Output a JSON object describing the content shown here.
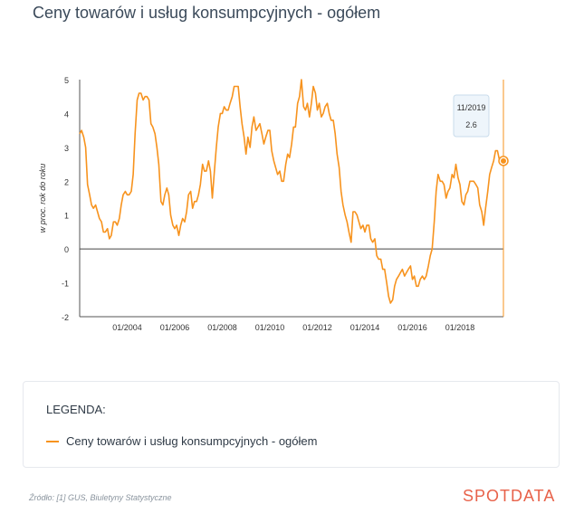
{
  "title": "Ceny towarów i usług konsumpcyjnych - ogółem",
  "legend": {
    "title": "LEGENDA:",
    "item": "Ceny towarów i usług konsumpcyjnych - ogółem"
  },
  "source": "Źródło: [1] GUS, Biuletyny Statystyczne",
  "brand": "SPOTDATA",
  "colors": {
    "series": "#f7931e",
    "brand": "#e8624a",
    "title": "#3b4a5a"
  },
  "chart_data": {
    "type": "line",
    "ylabel": "w proc. rok do roku",
    "ylim": [
      -2,
      5
    ],
    "yticks": [
      -2,
      -1,
      0,
      1,
      2,
      3,
      4,
      5
    ],
    "xlim": [
      2002.0,
      2019.83
    ],
    "xticks": [
      {
        "x": 2004.0,
        "label": "01/2004"
      },
      {
        "x": 2006.0,
        "label": "01/2006"
      },
      {
        "x": 2008.0,
        "label": "01/2008"
      },
      {
        "x": 2010.0,
        "label": "01/2010"
      },
      {
        "x": 2012.0,
        "label": "01/2012"
      },
      {
        "x": 2014.0,
        "label": "01/2014"
      },
      {
        "x": 2016.0,
        "label": "01/2016"
      },
      {
        "x": 2018.0,
        "label": "01/2018"
      }
    ],
    "tooltip": {
      "date": "11/2019",
      "value": "2.6"
    },
    "series": [
      {
        "name": "Ceny towarów i usług konsumpcyjnych - ogółem",
        "points": [
          [
            2002.0,
            3.4
          ],
          [
            2002.08,
            3.5
          ],
          [
            2002.17,
            3.3
          ],
          [
            2002.25,
            3.0
          ],
          [
            2002.33,
            1.9
          ],
          [
            2002.42,
            1.6
          ],
          [
            2002.5,
            1.3
          ],
          [
            2002.58,
            1.2
          ],
          [
            2002.67,
            1.3
          ],
          [
            2002.75,
            1.1
          ],
          [
            2002.83,
            0.9
          ],
          [
            2002.92,
            0.8
          ],
          [
            2003.0,
            0.5
          ],
          [
            2003.08,
            0.5
          ],
          [
            2003.17,
            0.6
          ],
          [
            2003.25,
            0.3
          ],
          [
            2003.33,
            0.4
          ],
          [
            2003.42,
            0.8
          ],
          [
            2003.5,
            0.8
          ],
          [
            2003.58,
            0.7
          ],
          [
            2003.67,
            0.9
          ],
          [
            2003.75,
            1.3
          ],
          [
            2003.83,
            1.6
          ],
          [
            2003.92,
            1.7
          ],
          [
            2004.0,
            1.6
          ],
          [
            2004.08,
            1.6
          ],
          [
            2004.17,
            1.7
          ],
          [
            2004.25,
            2.2
          ],
          [
            2004.33,
            3.4
          ],
          [
            2004.42,
            4.4
          ],
          [
            2004.5,
            4.6
          ],
          [
            2004.58,
            4.6
          ],
          [
            2004.67,
            4.4
          ],
          [
            2004.75,
            4.5
          ],
          [
            2004.83,
            4.5
          ],
          [
            2004.92,
            4.4
          ],
          [
            2005.0,
            3.7
          ],
          [
            2005.08,
            3.6
          ],
          [
            2005.17,
            3.4
          ],
          [
            2005.25,
            3.0
          ],
          [
            2005.33,
            2.5
          ],
          [
            2005.42,
            1.4
          ],
          [
            2005.5,
            1.3
          ],
          [
            2005.58,
            1.6
          ],
          [
            2005.67,
            1.8
          ],
          [
            2005.75,
            1.6
          ],
          [
            2005.83,
            1.0
          ],
          [
            2005.92,
            0.7
          ],
          [
            2006.0,
            0.6
          ],
          [
            2006.08,
            0.7
          ],
          [
            2006.17,
            0.4
          ],
          [
            2006.25,
            0.7
          ],
          [
            2006.33,
            0.9
          ],
          [
            2006.42,
            0.8
          ],
          [
            2006.5,
            1.1
          ],
          [
            2006.58,
            1.6
          ],
          [
            2006.67,
            1.7
          ],
          [
            2006.75,
            1.2
          ],
          [
            2006.83,
            1.4
          ],
          [
            2006.92,
            1.4
          ],
          [
            2007.0,
            1.6
          ],
          [
            2007.08,
            1.9
          ],
          [
            2007.17,
            2.5
          ],
          [
            2007.25,
            2.3
          ],
          [
            2007.33,
            2.3
          ],
          [
            2007.42,
            2.6
          ],
          [
            2007.5,
            2.3
          ],
          [
            2007.58,
            1.5
          ],
          [
            2007.67,
            2.3
          ],
          [
            2007.75,
            3.0
          ],
          [
            2007.83,
            3.6
          ],
          [
            2007.92,
            4.0
          ],
          [
            2008.0,
            4.0
          ],
          [
            2008.08,
            4.2
          ],
          [
            2008.17,
            4.1
          ],
          [
            2008.25,
            4.1
          ],
          [
            2008.33,
            4.3
          ],
          [
            2008.42,
            4.5
          ],
          [
            2008.5,
            4.8
          ],
          [
            2008.58,
            4.8
          ],
          [
            2008.67,
            4.8
          ],
          [
            2008.75,
            4.2
          ],
          [
            2008.83,
            3.7
          ],
          [
            2008.92,
            3.3
          ],
          [
            2009.0,
            2.8
          ],
          [
            2009.08,
            3.3
          ],
          [
            2009.17,
            3.0
          ],
          [
            2009.25,
            3.6
          ],
          [
            2009.33,
            3.9
          ],
          [
            2009.42,
            3.5
          ],
          [
            2009.5,
            3.6
          ],
          [
            2009.58,
            3.7
          ],
          [
            2009.67,
            3.4
          ],
          [
            2009.75,
            3.1
          ],
          [
            2009.83,
            3.3
          ],
          [
            2009.92,
            3.5
          ],
          [
            2010.0,
            3.5
          ],
          [
            2010.08,
            2.9
          ],
          [
            2010.17,
            2.6
          ],
          [
            2010.25,
            2.4
          ],
          [
            2010.33,
            2.2
          ],
          [
            2010.42,
            2.3
          ],
          [
            2010.5,
            2.0
          ],
          [
            2010.58,
            2.0
          ],
          [
            2010.67,
            2.5
          ],
          [
            2010.75,
            2.8
          ],
          [
            2010.83,
            2.7
          ],
          [
            2010.92,
            3.1
          ],
          [
            2011.0,
            3.6
          ],
          [
            2011.08,
            3.6
          ],
          [
            2011.17,
            4.3
          ],
          [
            2011.25,
            4.5
          ],
          [
            2011.33,
            5.0
          ],
          [
            2011.42,
            4.2
          ],
          [
            2011.5,
            4.1
          ],
          [
            2011.58,
            4.3
          ],
          [
            2011.67,
            3.9
          ],
          [
            2011.75,
            4.3
          ],
          [
            2011.83,
            4.8
          ],
          [
            2011.92,
            4.6
          ],
          [
            2012.0,
            4.1
          ],
          [
            2012.08,
            4.3
          ],
          [
            2012.17,
            3.9
          ],
          [
            2012.25,
            4.0
          ],
          [
            2012.33,
            4.2
          ],
          [
            2012.42,
            4.3
          ],
          [
            2012.5,
            4.0
          ],
          [
            2012.58,
            3.8
          ],
          [
            2012.67,
            3.8
          ],
          [
            2012.75,
            3.4
          ],
          [
            2012.83,
            2.8
          ],
          [
            2012.92,
            2.4
          ],
          [
            2013.0,
            1.7
          ],
          [
            2013.08,
            1.3
          ],
          [
            2013.17,
            1.0
          ],
          [
            2013.25,
            0.8
          ],
          [
            2013.33,
            0.5
          ],
          [
            2013.42,
            0.2
          ],
          [
            2013.5,
            1.1
          ],
          [
            2013.58,
            1.1
          ],
          [
            2013.67,
            1.0
          ],
          [
            2013.75,
            0.8
          ],
          [
            2013.83,
            0.6
          ],
          [
            2013.92,
            0.7
          ],
          [
            2014.0,
            0.5
          ],
          [
            2014.08,
            0.7
          ],
          [
            2014.17,
            0.7
          ],
          [
            2014.25,
            0.3
          ],
          [
            2014.33,
            0.2
          ],
          [
            2014.42,
            0.3
          ],
          [
            2014.5,
            -0.2
          ],
          [
            2014.58,
            -0.3
          ],
          [
            2014.67,
            -0.3
          ],
          [
            2014.75,
            -0.6
          ],
          [
            2014.83,
            -0.6
          ],
          [
            2014.92,
            -1.0
          ],
          [
            2015.0,
            -1.4
          ],
          [
            2015.08,
            -1.6
          ],
          [
            2015.17,
            -1.5
          ],
          [
            2015.25,
            -1.1
          ],
          [
            2015.33,
            -0.9
          ],
          [
            2015.42,
            -0.8
          ],
          [
            2015.5,
            -0.7
          ],
          [
            2015.58,
            -0.6
          ],
          [
            2015.67,
            -0.8
          ],
          [
            2015.75,
            -0.7
          ],
          [
            2015.83,
            -0.6
          ],
          [
            2015.92,
            -0.5
          ],
          [
            2016.0,
            -0.9
          ],
          [
            2016.08,
            -0.8
          ],
          [
            2016.17,
            -1.1
          ],
          [
            2016.25,
            -1.1
          ],
          [
            2016.33,
            -0.9
          ],
          [
            2016.42,
            -0.8
          ],
          [
            2016.5,
            -0.9
          ],
          [
            2016.58,
            -0.8
          ],
          [
            2016.67,
            -0.5
          ],
          [
            2016.75,
            -0.2
          ],
          [
            2016.83,
            0.0
          ],
          [
            2016.92,
            0.8
          ],
          [
            2017.0,
            1.7
          ],
          [
            2017.08,
            2.2
          ],
          [
            2017.17,
            2.0
          ],
          [
            2017.25,
            2.0
          ],
          [
            2017.33,
            1.9
          ],
          [
            2017.42,
            1.5
          ],
          [
            2017.5,
            1.7
          ],
          [
            2017.58,
            1.8
          ],
          [
            2017.67,
            2.2
          ],
          [
            2017.75,
            2.1
          ],
          [
            2017.83,
            2.5
          ],
          [
            2017.92,
            2.1
          ],
          [
            2018.0,
            1.9
          ],
          [
            2018.08,
            1.4
          ],
          [
            2018.17,
            1.3
          ],
          [
            2018.25,
            1.6
          ],
          [
            2018.33,
            1.7
          ],
          [
            2018.42,
            2.0
          ],
          [
            2018.5,
            2.0
          ],
          [
            2018.58,
            2.0
          ],
          [
            2018.67,
            1.9
          ],
          [
            2018.75,
            1.8
          ],
          [
            2018.83,
            1.3
          ],
          [
            2018.92,
            1.1
          ],
          [
            2019.0,
            0.7
          ],
          [
            2019.08,
            1.2
          ],
          [
            2019.17,
            1.7
          ],
          [
            2019.25,
            2.2
          ],
          [
            2019.33,
            2.4
          ],
          [
            2019.42,
            2.6
          ],
          [
            2019.5,
            2.9
          ],
          [
            2019.58,
            2.9
          ],
          [
            2019.67,
            2.6
          ],
          [
            2019.75,
            2.5
          ],
          [
            2019.83,
            2.6
          ]
        ]
      }
    ]
  }
}
